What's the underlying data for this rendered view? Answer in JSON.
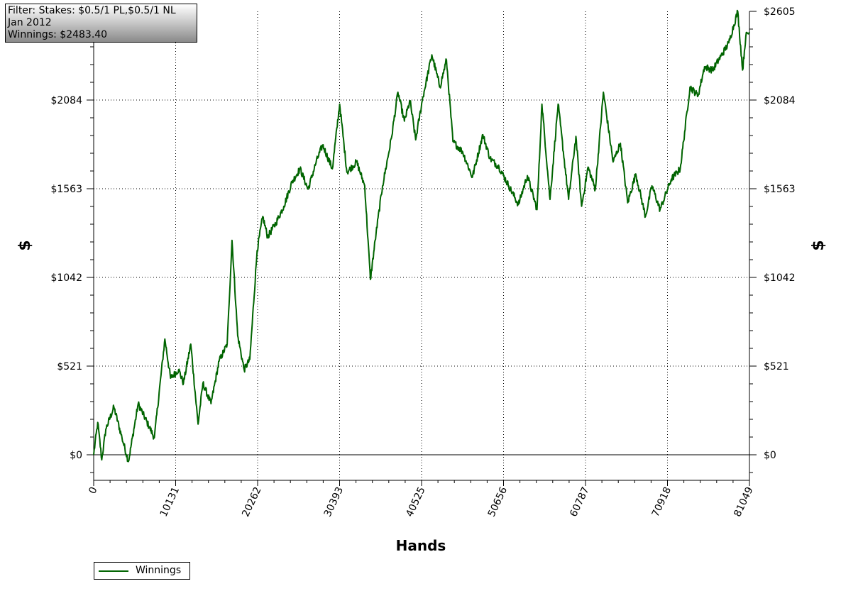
{
  "filter": {
    "line1": "Filter: Stakes: $0.5/1 PL,$0.5/1 NL",
    "line2": "Jan 2012",
    "line3": "Winnings: $2483.40"
  },
  "legend": {
    "label": "Winnings"
  },
  "colors": {
    "series": "#006400",
    "grid": "#000000"
  },
  "chart_data": {
    "type": "line",
    "xlabel": "Hands",
    "ylabel": "$",
    "xlim": [
      0,
      81049
    ],
    "ylim": [
      -140,
      2605
    ],
    "x_ticks": [
      0,
      10131,
      20262,
      30393,
      40525,
      50656,
      60787,
      70918,
      81049
    ],
    "x_tick_labels": [
      "0",
      "10131",
      "20262",
      "30393",
      "40525",
      "50656",
      "60787",
      "70918",
      "81049"
    ],
    "y_ticks": [
      0,
      521,
      1042,
      1563,
      2084,
      2605
    ],
    "y_tick_labels": [
      "$0",
      "$521",
      "$1042",
      "$1563",
      "$2084",
      "$2605"
    ],
    "grid": true,
    "legend_position": "bottom-left",
    "series": [
      {
        "name": "Winnings",
        "x": [
          0,
          500,
          1000,
          1500,
          2500,
          3500,
          4300,
          5500,
          7500,
          8800,
          9500,
          10500,
          11100,
          12000,
          12900,
          13500,
          14500,
          15500,
          16500,
          17100,
          17800,
          18600,
          19300,
          20200,
          20900,
          21500,
          22500,
          23500,
          24500,
          25500,
          26500,
          27500,
          28300,
          29500,
          30400,
          31300,
          32500,
          33500,
          34200,
          34900,
          35700,
          36800,
          37600,
          38400,
          39100,
          39800,
          40600,
          41800,
          42800,
          43600,
          44400,
          45600,
          46800,
          48100,
          49000,
          50100,
          51300,
          52500,
          53600,
          54800,
          55400,
          56400,
          57400,
          58700,
          59600,
          60300,
          61100,
          62000,
          63000,
          64200,
          65100,
          66000,
          67000,
          68200,
          69000,
          70000,
          71400,
          72500,
          73700,
          74700,
          75500,
          76500,
          77500,
          78500,
          79600,
          80200,
          80600,
          81049
        ],
        "y": [
          0,
          190,
          -30,
          150,
          280,
          100,
          -40,
          300,
          100,
          680,
          450,
          500,
          420,
          650,
          180,
          420,
          300,
          550,
          650,
          1260,
          700,
          500,
          560,
          1200,
          1400,
          1280,
          1360,
          1460,
          1600,
          1680,
          1560,
          1720,
          1820,
          1680,
          2060,
          1660,
          1720,
          1580,
          1030,
          1300,
          1580,
          1860,
          2130,
          1960,
          2080,
          1850,
          2080,
          2350,
          2160,
          2320,
          1840,
          1780,
          1630,
          1880,
          1740,
          1690,
          1580,
          1470,
          1640,
          1440,
          2060,
          1500,
          2060,
          1500,
          1870,
          1460,
          1690,
          1560,
          2130,
          1720,
          1830,
          1480,
          1650,
          1400,
          1580,
          1440,
          1620,
          1680,
          2160,
          2110,
          2280,
          2260,
          2340,
          2420,
          2605,
          2260,
          2460,
          2483
        ]
      }
    ]
  }
}
